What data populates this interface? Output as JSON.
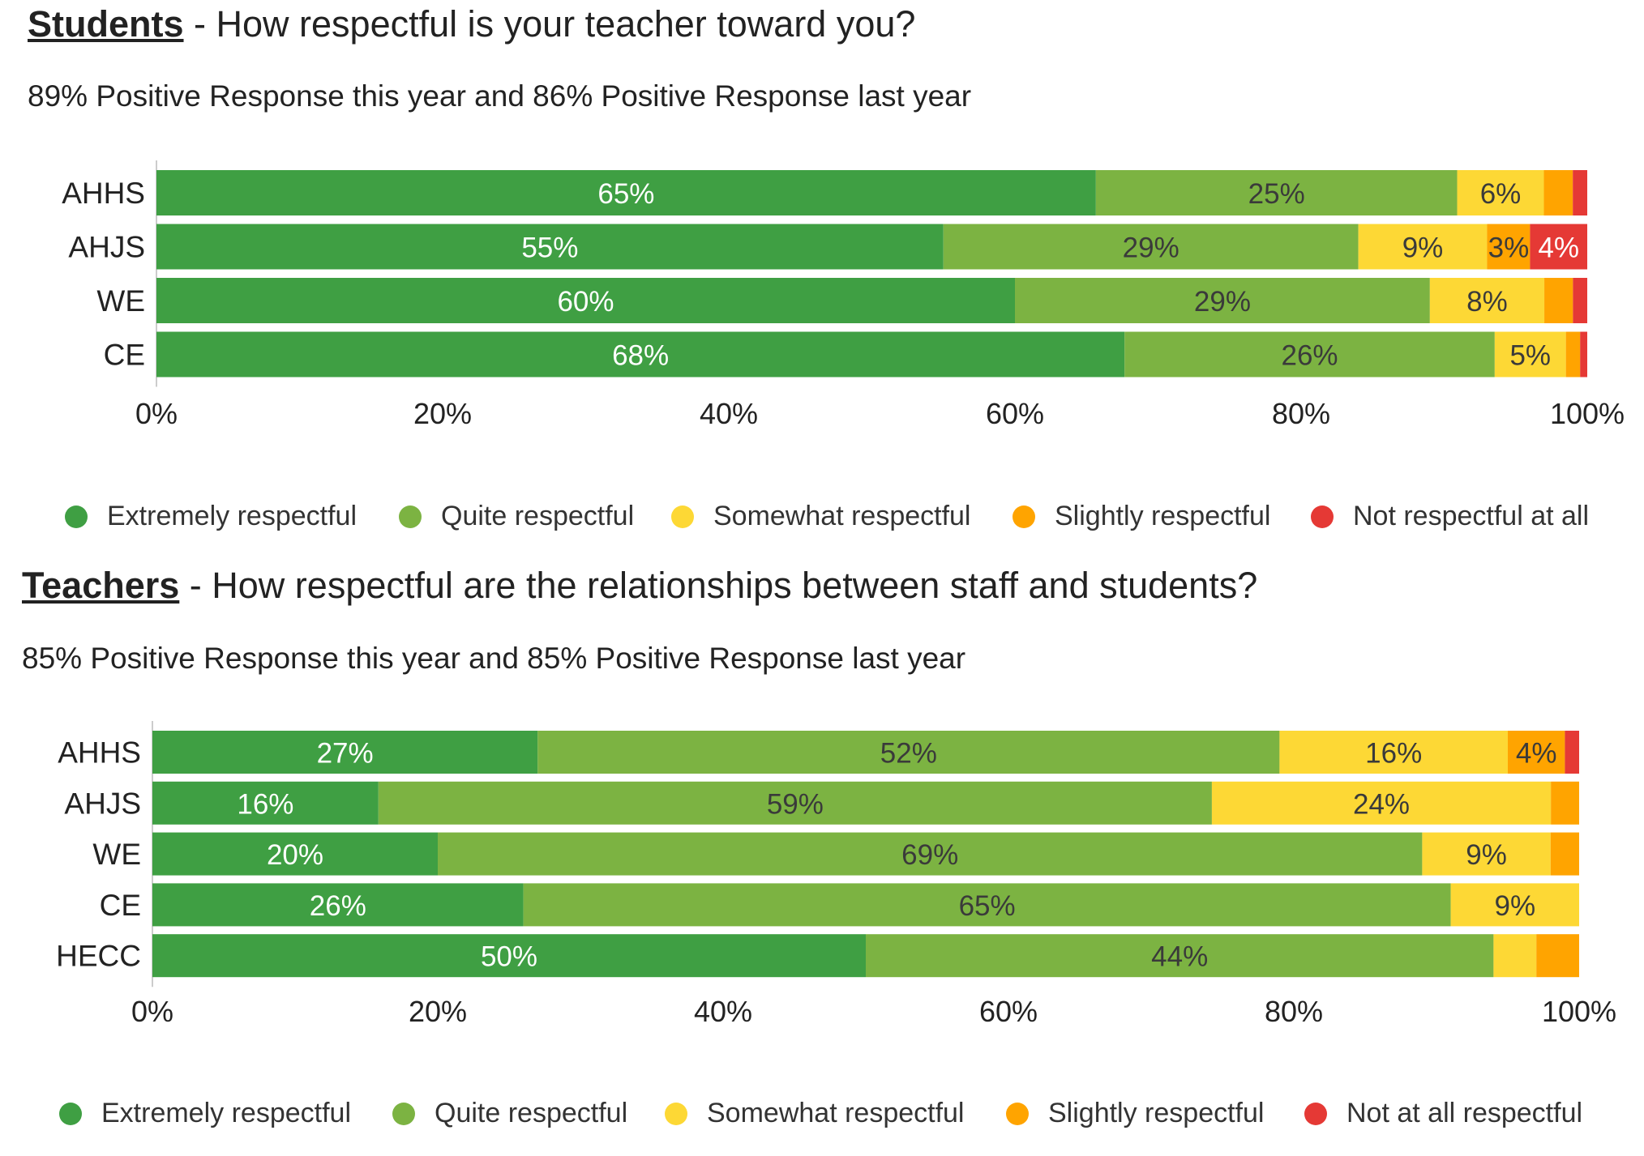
{
  "colors": {
    "extremely": "#3f9f43",
    "quite": "#7cb342",
    "somewhat": "#fdd835",
    "slightly": "#ffa400",
    "not": "#e53935"
  },
  "chart_data": [
    {
      "type": "bar",
      "orientation": "horizontal-stacked-100",
      "title_who": "Students",
      "title_rest": " - How respectful is your teacher toward you?",
      "subtitle": "89% Positive Response this year and 86% Positive Response last year",
      "categories": [
        "AHHS",
        "AHJS",
        "WE",
        "CE"
      ],
      "series": [
        {
          "name": "Extremely respectful",
          "color_key": "extremely",
          "values": [
            65,
            55,
            60,
            68
          ],
          "labels": [
            "65%",
            "55%",
            "60%",
            "68%"
          ]
        },
        {
          "name": "Quite respectful",
          "color_key": "quite",
          "values": [
            25,
            29,
            29,
            26
          ],
          "labels": [
            "25%",
            "29%",
            "29%",
            "26%"
          ]
        },
        {
          "name": "Somewhat respectful",
          "color_key": "somewhat",
          "values": [
            6,
            9,
            8,
            5
          ],
          "labels": [
            "6%",
            "9%",
            "8%",
            "5%"
          ]
        },
        {
          "name": "Slightly respectful",
          "color_key": "slightly",
          "values": [
            2,
            3,
            2,
            1
          ],
          "labels": [
            "",
            "3%",
            "",
            ""
          ]
        },
        {
          "name": "Not respectful at all",
          "color_key": "not",
          "values": [
            1,
            4,
            1,
            0.5
          ],
          "labels": [
            "",
            "4%",
            "",
            ""
          ]
        }
      ],
      "xticks": [
        "0%",
        "20%",
        "40%",
        "60%",
        "80%",
        "100%"
      ],
      "xlim": [
        0,
        100
      ],
      "legend": "bottom"
    },
    {
      "type": "bar",
      "orientation": "horizontal-stacked-100",
      "title_who": "Teachers",
      "title_rest": " - How respectful are the relationships between staff and students?",
      "subtitle": "85% Positive Response this year and 85% Positive Response last year",
      "categories": [
        "AHHS",
        "AHJS",
        "WE",
        "CE",
        "HECC"
      ],
      "series": [
        {
          "name": "Extremely respectful",
          "color_key": "extremely",
          "values": [
            27,
            16,
            20,
            26,
            50
          ],
          "labels": [
            "27%",
            "16%",
            "20%",
            "26%",
            "50%"
          ]
        },
        {
          "name": "Quite respectful",
          "color_key": "quite",
          "values": [
            52,
            59,
            69,
            65,
            44
          ],
          "labels": [
            "52%",
            "59%",
            "69%",
            "65%",
            "44%"
          ]
        },
        {
          "name": "Somewhat respectful",
          "color_key": "somewhat",
          "values": [
            16,
            24,
            9,
            9,
            3
          ],
          "labels": [
            "16%",
            "24%",
            "9%",
            "9%",
            ""
          ]
        },
        {
          "name": "Slightly respectful",
          "color_key": "slightly",
          "values": [
            4,
            2,
            2,
            0,
            3
          ],
          "labels": [
            "4%",
            "",
            "",
            "",
            ""
          ]
        },
        {
          "name": "Not at all respectful",
          "color_key": "not",
          "values": [
            1,
            0,
            0,
            0,
            0
          ],
          "labels": [
            "",
            "",
            "",
            "",
            ""
          ]
        }
      ],
      "xticks": [
        "0%",
        "20%",
        "40%",
        "60%",
        "80%",
        "100%"
      ],
      "xlim": [
        0,
        100
      ],
      "legend": "bottom"
    }
  ]
}
